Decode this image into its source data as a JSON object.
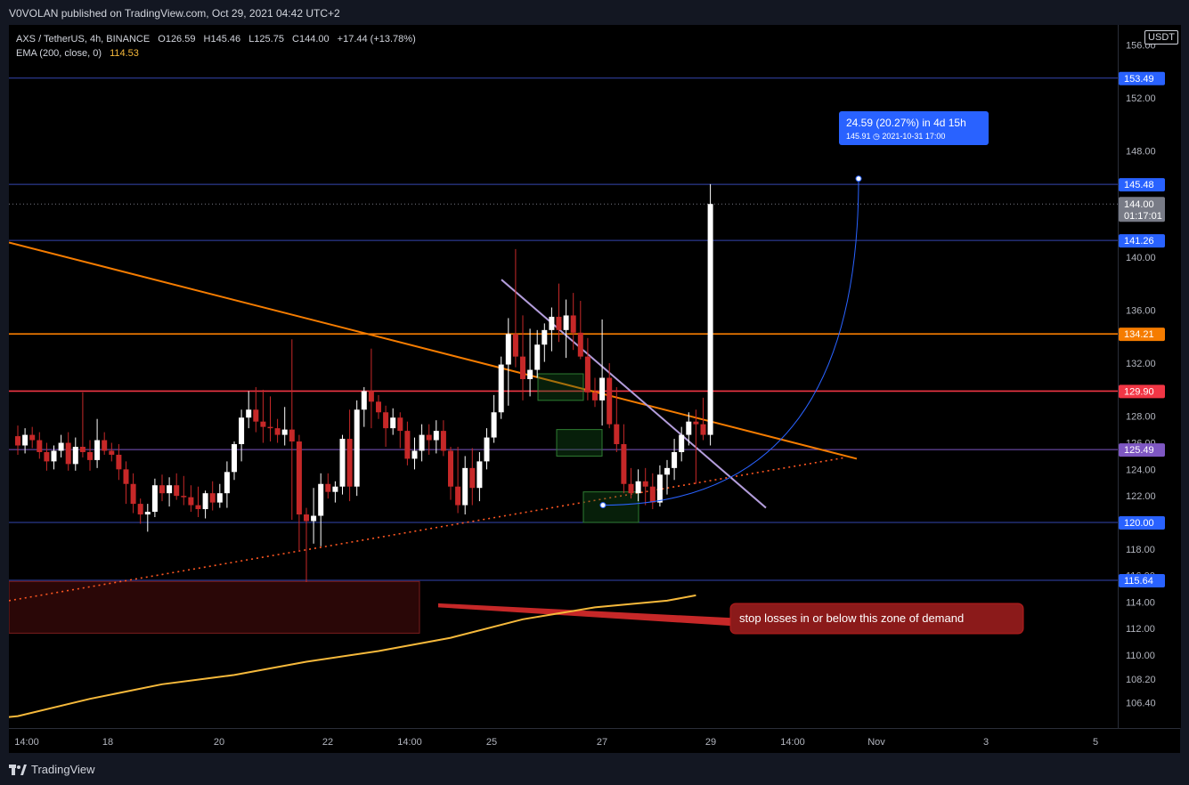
{
  "header": {
    "published": "V0VOLAN published on TradingView.com, Oct 29, 2021 04:42 UTC+2"
  },
  "legend": {
    "symbol": "AXS / TetherUS, 4h, BINANCE",
    "open": "O126.59",
    "high": "H145.46",
    "low": "L125.75",
    "close": "C144.00",
    "change": "+17.44 (+13.78%)",
    "ema_label": "EMA (200, close, 0)",
    "ema_value": "114.53"
  },
  "currency": "USDT",
  "footer": {
    "brand": "TradingView"
  },
  "colors": {
    "bull": "#ffffff",
    "bear": "#c62828",
    "ema": "#f6b93b",
    "trend": "#f57c00",
    "hline_blue": "#3546b0",
    "hline_orange": "#f57c00",
    "hline_red": "#f23645",
    "hline_purple": "#7e57c2",
    "measure": "#2962ff",
    "callout": "#8b1a1a"
  },
  "chart_data": {
    "type": "candlestick",
    "symbol": "AXS / TetherUS",
    "interval": "4h",
    "ylim": [
      104.5,
      157.5
    ],
    "x_ticks": [
      "14:00",
      "18",
      "20",
      "22",
      "14:00",
      "25",
      "27",
      "29",
      "14:00",
      "Nov",
      "3",
      "5"
    ],
    "y_ticks": [
      106.4,
      108.2,
      110,
      112,
      114,
      116,
      118,
      120,
      122,
      124,
      126,
      128,
      132,
      136,
      140,
      148,
      152,
      156
    ],
    "y_tick_labels": [
      "106.40",
      "108.20",
      "110.00",
      "112.00",
      "114.00",
      "116.00",
      "118.00",
      "120.00",
      "122.00",
      "124.00",
      "126.00",
      "128.00",
      "132.00",
      "136.00",
      "140.00",
      "148.00",
      "152.00",
      "156.00"
    ],
    "candles": [
      [
        126.5,
        127.3,
        125.1,
        125.8
      ],
      [
        125.8,
        127.1,
        125.2,
        126.6
      ],
      [
        126.6,
        127.2,
        125.6,
        126.2
      ],
      [
        126.2,
        126.8,
        124.8,
        125.3
      ],
      [
        125.3,
        126.0,
        123.9,
        124.6
      ],
      [
        124.6,
        125.8,
        124.0,
        125.4
      ],
      [
        125.4,
        126.6,
        124.9,
        126.0
      ],
      [
        126.0,
        126.8,
        123.9,
        124.4
      ],
      [
        124.4,
        126.4,
        123.9,
        125.7
      ],
      [
        125.7,
        129.8,
        124.9,
        125.3
      ],
      [
        125.3,
        126.2,
        123.9,
        124.7
      ],
      [
        124.7,
        127.8,
        124.1,
        126.2
      ],
      [
        126.2,
        126.8,
        125.1,
        125.4
      ],
      [
        125.4,
        126.0,
        124.6,
        125.1
      ],
      [
        125.1,
        125.9,
        123.2,
        124.0
      ],
      [
        124.0,
        124.6,
        121.4,
        122.9
      ],
      [
        122.9,
        123.7,
        120.7,
        121.4
      ],
      [
        121.4,
        121.8,
        119.9,
        120.6
      ],
      [
        120.6,
        121.4,
        119.3,
        120.8
      ],
      [
        120.8,
        123.3,
        120.4,
        122.8
      ],
      [
        122.8,
        123.6,
        121.6,
        122.2
      ],
      [
        122.2,
        123.4,
        121.2,
        122.8
      ],
      [
        122.8,
        123.7,
        121.7,
        122.0
      ],
      [
        122.0,
        123.5,
        121.3,
        121.9
      ],
      [
        121.9,
        122.8,
        120.8,
        121.3
      ],
      [
        121.3,
        122.7,
        120.4,
        121.0
      ],
      [
        121.0,
        122.4,
        120.3,
        122.2
      ],
      [
        122.2,
        123.1,
        120.9,
        121.5
      ],
      [
        121.5,
        122.9,
        121.1,
        122.2
      ],
      [
        122.2,
        124.6,
        121.1,
        123.8
      ],
      [
        123.8,
        126.1,
        123.2,
        125.9
      ],
      [
        125.9,
        128.5,
        124.6,
        127.9
      ],
      [
        127.9,
        129.9,
        127.1,
        128.5
      ],
      [
        128.5,
        130.2,
        126.8,
        127.6
      ],
      [
        127.6,
        130.0,
        126.0,
        127.2
      ],
      [
        127.2,
        129.5,
        126.1,
        127.1
      ],
      [
        127.1,
        127.8,
        126.0,
        126.6
      ],
      [
        126.6,
        128.7,
        125.8,
        127.0
      ],
      [
        127.0,
        133.8,
        120.2,
        126.1
      ],
      [
        126.1,
        126.6,
        117.8,
        120.6
      ],
      [
        120.6,
        121.1,
        115.5,
        120.1
      ],
      [
        120.1,
        122.6,
        118.4,
        120.5
      ],
      [
        120.5,
        123.7,
        118.2,
        122.9
      ],
      [
        122.9,
        123.7,
        121.8,
        122.3
      ],
      [
        122.3,
        123.1,
        121.5,
        122.7
      ],
      [
        122.7,
        126.6,
        122.1,
        126.3
      ],
      [
        126.3,
        128.5,
        121.6,
        122.7
      ],
      [
        122.7,
        129.2,
        122.0,
        128.5
      ],
      [
        128.5,
        130.2,
        127.2,
        129.9
      ],
      [
        129.9,
        133.1,
        127.1,
        129.1
      ],
      [
        129.1,
        129.6,
        127.8,
        128.3
      ],
      [
        128.3,
        128.8,
        125.7,
        127.1
      ],
      [
        127.1,
        128.6,
        126.6,
        127.9
      ],
      [
        127.9,
        128.3,
        125.6,
        126.9
      ],
      [
        126.9,
        127.6,
        124.3,
        124.8
      ],
      [
        124.8,
        126.4,
        124.0,
        125.4
      ],
      [
        125.4,
        127.4,
        124.6,
        126.6
      ],
      [
        126.6,
        127.4,
        125.1,
        126.2
      ],
      [
        126.2,
        127.7,
        125.2,
        126.9
      ],
      [
        126.9,
        127.7,
        125.0,
        125.4
      ],
      [
        125.4,
        125.7,
        121.7,
        122.7
      ],
      [
        122.7,
        125.7,
        120.7,
        121.3
      ],
      [
        121.3,
        125.0,
        120.6,
        124.1
      ],
      [
        124.1,
        125.6,
        121.3,
        122.6
      ],
      [
        122.6,
        125.3,
        121.6,
        124.6
      ],
      [
        124.6,
        127.1,
        124.0,
        126.4
      ],
      [
        126.4,
        129.6,
        126.0,
        128.3
      ],
      [
        128.3,
        132.5,
        127.8,
        131.9
      ],
      [
        131.9,
        135.4,
        128.8,
        134.2
      ],
      [
        134.2,
        140.6,
        131.7,
        132.5
      ],
      [
        132.5,
        135.6,
        129.2,
        130.8
      ],
      [
        130.8,
        134.6,
        129.5,
        131.5
      ],
      [
        131.5,
        134.5,
        130.9,
        133.4
      ],
      [
        133.4,
        135.0,
        132.1,
        134.5
      ],
      [
        134.5,
        136.2,
        132.9,
        135.5
      ],
      [
        135.5,
        138.0,
        133.6,
        134.5
      ],
      [
        134.5,
        136.8,
        132.4,
        135.6
      ],
      [
        135.6,
        137.3,
        133.0,
        134.3
      ],
      [
        134.3,
        136.7,
        132.3,
        132.5
      ],
      [
        132.5,
        133.9,
        129.2,
        129.8
      ],
      [
        129.8,
        130.9,
        128.7,
        129.2
      ],
      [
        129.2,
        135.3,
        127.3,
        130.9
      ],
      [
        130.9,
        132.0,
        127.1,
        127.4
      ],
      [
        127.4,
        130.2,
        125.3,
        125.9
      ],
      [
        125.9,
        127.4,
        122.2,
        122.9
      ],
      [
        122.9,
        124.1,
        121.8,
        122.2
      ],
      [
        122.2,
        124.0,
        121.6,
        123.1
      ],
      [
        123.1,
        124.1,
        121.3,
        122.7
      ],
      [
        122.7,
        123.7,
        121.0,
        121.5
      ],
      [
        121.5,
        124.3,
        121.2,
        123.6
      ],
      [
        123.6,
        124.7,
        122.1,
        124.1
      ],
      [
        124.1,
        126.3,
        123.2,
        125.3
      ],
      [
        125.3,
        127.2,
        124.6,
        126.6
      ],
      [
        126.6,
        128.3,
        125.8,
        127.6
      ],
      [
        127.6,
        128.5,
        122.9,
        127.4
      ],
      [
        127.4,
        129.4,
        126.2,
        126.6
      ],
      [
        126.6,
        145.5,
        125.8,
        144.0
      ]
    ],
    "horizontal_levels": [
      {
        "value": 153.49,
        "label": "153.49",
        "color": "#3546b0"
      },
      {
        "value": 145.48,
        "label": "145.48",
        "color": "#3546b0"
      },
      {
        "value": 141.26,
        "label": "141.26",
        "color": "#3546b0"
      },
      {
        "value": 134.21,
        "label": "134.21",
        "color": "#f57c00"
      },
      {
        "value": 129.9,
        "label": "129.90",
        "color": "#f23645"
      },
      {
        "value": 125.49,
        "label": "125.49",
        "color": "#7e57c2"
      },
      {
        "value": 120.0,
        "label": "120.00",
        "color": "#3546b0"
      },
      {
        "value": 115.64,
        "label": "115.64",
        "color": "#3546b0"
      }
    ],
    "current_price": {
      "value": 144.0,
      "label": "144.00",
      "countdown": "01:17:01"
    },
    "ema": {
      "name": "EMA (200, close, 0)",
      "points": [
        [
          -15,
          104.6
        ],
        [
          0,
          105.4
        ],
        [
          10,
          106.7
        ],
        [
          20,
          107.8
        ],
        [
          30,
          108.5
        ],
        [
          40,
          109.5
        ],
        [
          50,
          110.3
        ],
        [
          60,
          111.3
        ],
        [
          70,
          112.7
        ],
        [
          80,
          113.6
        ],
        [
          90,
          114.1
        ],
        [
          94,
          114.5
        ]
      ]
    },
    "measure": {
      "label": "24.59 (20.27%) in 4d 15h",
      "sublabel": "145.91 ◷ 2021-10-31  17:00"
    },
    "annotation": "stop losses in or below this zone of demand"
  }
}
